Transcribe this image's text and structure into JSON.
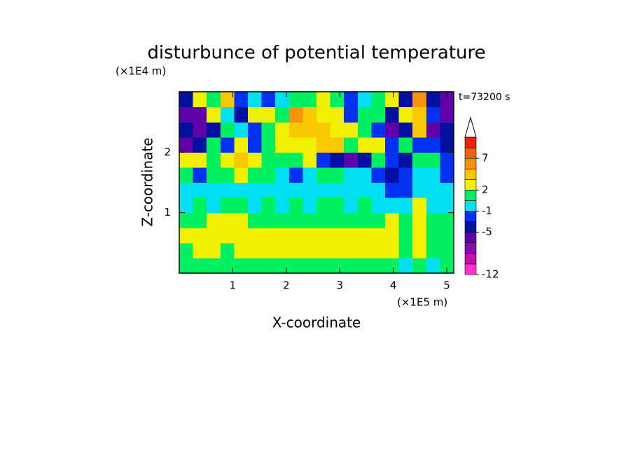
{
  "chart_data": {
    "type": "contour",
    "title": "disturbunce of potential temperature",
    "x_label": "X-coordinate",
    "y_label": "Z-coordinate",
    "x_unit_label": "(×1E5 m)",
    "y_unit_label": "(×1E4 m)",
    "annotation": "t=73200 s",
    "xlim": [
      0,
      5.13
    ],
    "xticks": [
      1,
      2,
      3,
      4,
      5
    ],
    "ylim": [
      0,
      3
    ],
    "yticks": [
      1,
      2
    ],
    "colorbar": {
      "levels": [
        -12,
        null,
        null,
        null,
        -5,
        null,
        -1,
        null,
        2,
        null,
        null,
        7,
        null,
        null
      ],
      "colors": [
        "#ff30d0",
        "#c010b0",
        "#8010b0",
        "#6000a8",
        "#0010a0",
        "#0030f0",
        "#00e0f0",
        "#00f060",
        "#f0f000",
        "#f8c800",
        "#f89010",
        "#f06010",
        "#f02010",
        "#f8c0c0"
      ]
    },
    "z": [
      [
        1,
        1,
        1.5,
        1,
        1,
        1,
        1.5,
        1,
        1,
        1,
        1,
        1,
        1,
        1,
        1,
        1,
        0,
        1,
        0,
        1
      ],
      [
        1.5,
        2.5,
        2.5,
        1.5,
        2.5,
        2.5,
        2.5,
        2.5,
        2.5,
        2.5,
        2.5,
        2.5,
        3,
        3,
        2.5,
        2.5,
        1,
        2.5,
        1.5,
        1
      ],
      [
        2.5,
        2.5,
        3,
        2.5,
        2.5,
        3,
        3,
        2.5,
        2.5,
        2.5,
        3,
        3,
        3,
        3,
        3,
        2.5,
        1.5,
        2.5,
        1.5,
        1.5
      ],
      [
        1.5,
        1.5,
        2.5,
        2.5,
        2.5,
        1.5,
        1.5,
        1.5,
        1.5,
        1.5,
        1.5,
        1.5,
        1.5,
        1.5,
        1.5,
        2.5,
        1,
        2.5,
        1.5,
        1.5
      ],
      [
        -0.5,
        1,
        -0.5,
        1,
        1,
        -0.5,
        1,
        -0.5,
        1,
        -0.5,
        1,
        1,
        -0.5,
        1,
        -0.5,
        -0.5,
        -0.5,
        2.5,
        -0.5,
        -0.5
      ],
      [
        -0.5,
        -0.5,
        -0.5,
        -0.5,
        -0.5,
        -0.5,
        -0.5,
        -0.5,
        -0.5,
        -0.5,
        -0.5,
        -0.5,
        -0.5,
        -0.5,
        -0.5,
        -2,
        -2,
        -0.5,
        -0.5,
        -0.5
      ],
      [
        1,
        -2,
        1,
        1,
        2.5,
        1,
        1,
        -0.5,
        -2,
        -0.5,
        1,
        1,
        -0.5,
        -0.5,
        -2,
        -4,
        -2,
        -0.5,
        -0.5,
        -2
      ],
      [
        2.5,
        3,
        1,
        2.5,
        4,
        2.5,
        1,
        1,
        1,
        2.5,
        -2,
        -4,
        -6,
        -4,
        1,
        -2,
        -4,
        1,
        1,
        -2
      ],
      [
        -6,
        -4,
        1,
        -2,
        2.5,
        -2,
        1,
        2.5,
        2.5,
        3,
        4,
        4,
        1,
        2.5,
        2.5,
        -2,
        1,
        -2,
        -2,
        -4
      ],
      [
        -4,
        -6,
        -4,
        1,
        -0.5,
        -2,
        1,
        2.5,
        4,
        4,
        4,
        2.5,
        2.5,
        1,
        -2,
        -6,
        -4,
        4,
        -6,
        -4
      ],
      [
        -6,
        -6,
        2.5,
        -0.5,
        -4,
        2.5,
        3,
        1,
        6,
        4,
        2.5,
        2.5,
        -2,
        1,
        1,
        -4,
        3,
        4,
        -2,
        -6
      ],
      [
        -4,
        2.5,
        1,
        4,
        -2,
        -0.5,
        -2,
        -0.5,
        1,
        1,
        2.5,
        1,
        -2,
        -0.5,
        1,
        3,
        -4,
        6,
        -4,
        -6
      ]
    ]
  }
}
